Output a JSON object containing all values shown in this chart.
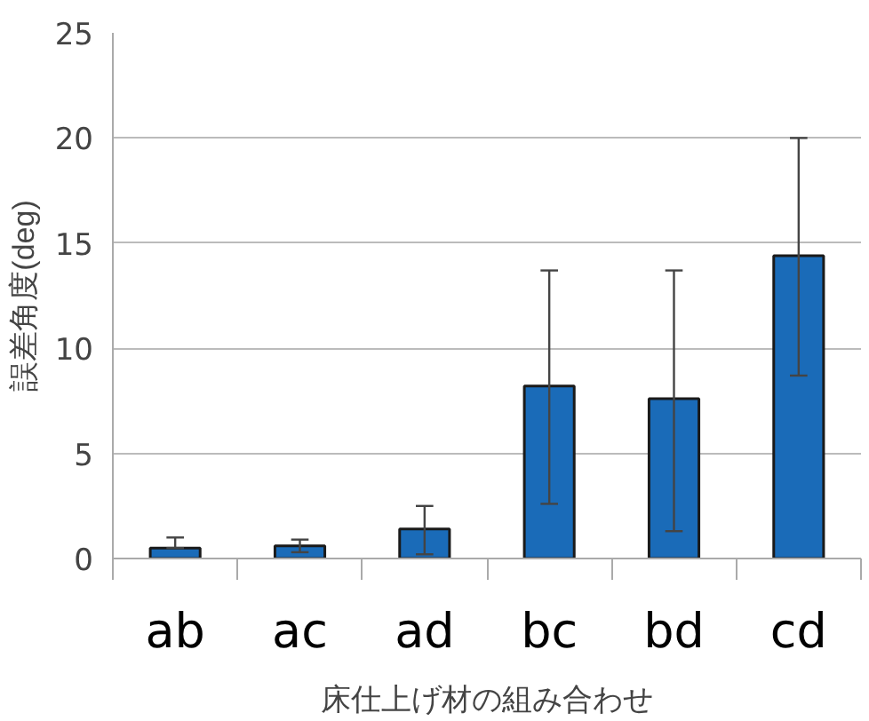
{
  "chart_data": {
    "type": "bar",
    "xlabel": "床仕上げ材の組み合わせ",
    "ylabel": "誤差角度(deg)",
    "categories": [
      "ab",
      "ac",
      "ad",
      "bc",
      "bd",
      "cd"
    ],
    "values": [
      0.5,
      0.6,
      1.4,
      8.2,
      7.6,
      14.4
    ],
    "errors": [
      [
        0.5,
        1.0
      ],
      [
        0.3,
        0.9
      ],
      [
        0.2,
        2.5
      ],
      [
        2.6,
        13.7
      ],
      [
        1.3,
        13.7
      ],
      [
        8.7,
        20.0
      ]
    ],
    "color": "#1a6bb8",
    "ylim": [
      0,
      25
    ],
    "yticks": [
      0,
      5,
      10,
      15,
      20,
      25
    ],
    "grid": "y"
  }
}
